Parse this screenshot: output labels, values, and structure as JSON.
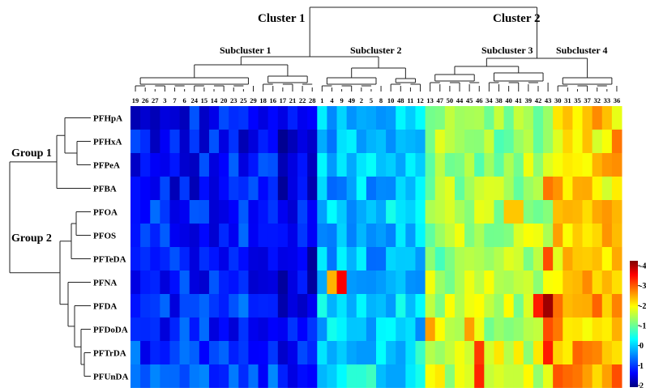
{
  "chart_data": {
    "type": "heatmap",
    "title": "",
    "rows": [
      "PFHpA",
      "PFHxA",
      "PFPeA",
      "PFBA",
      "PFOA",
      "PFOS",
      "PFTeDA",
      "PFNA",
      "PFDA",
      "PFDoDA",
      "PFTrDA",
      "PFUnDA"
    ],
    "columns": [
      "19",
      "26",
      "27",
      "3",
      "7",
      "6",
      "24",
      "15",
      "14",
      "20",
      "23",
      "25",
      "29",
      "18",
      "16",
      "17",
      "21",
      "22",
      "28",
      "1",
      "4",
      "9",
      "49",
      "2",
      "5",
      "8",
      "10",
      "48",
      "11",
      "12",
      "13",
      "47",
      "50",
      "44",
      "45",
      "46",
      "34",
      "38",
      "40",
      "41",
      "39",
      "42",
      "43",
      "30",
      "31",
      "35",
      "37",
      "32",
      "33",
      "36"
    ],
    "row_groups": [
      {
        "label": "Group 1",
        "rows": [
          "PFHpA",
          "PFHxA",
          "PFPeA",
          "PFBA"
        ]
      },
      {
        "label": "Group 2",
        "rows": [
          "PFOA",
          "PFOS",
          "PFTeDA",
          "PFNA",
          "PFDA",
          "PFDoDA",
          "PFTrDA",
          "PFUnDA"
        ]
      }
    ],
    "column_clusters": [
      {
        "label": "Cluster 1",
        "subclusters": [
          "Subcluster 1",
          "Subcluster 2"
        ]
      },
      {
        "label": "Cluster 2",
        "subclusters": [
          "Subcluster 3",
          "Subcluster 4"
        ]
      }
    ],
    "subclusters": [
      {
        "label": "Subcluster 1",
        "columns": [
          "19",
          "26",
          "27",
          "3",
          "7",
          "6",
          "24",
          "15",
          "14",
          "20",
          "23",
          "25",
          "29",
          "18",
          "16",
          "17",
          "21",
          "22",
          "28"
        ]
      },
      {
        "label": "Subcluster 2",
        "columns": [
          "1",
          "4",
          "9",
          "49",
          "2",
          "5",
          "8",
          "10",
          "48",
          "11",
          "12"
        ]
      },
      {
        "label": "Subcluster 3",
        "columns": [
          "13",
          "47",
          "50",
          "44",
          "45",
          "46",
          "34",
          "38",
          "40",
          "41",
          "39",
          "42",
          "43"
        ]
      },
      {
        "label": "Subcluster 4",
        "columns": [
          "30",
          "31",
          "35",
          "37",
          "32",
          "33",
          "36"
        ]
      }
    ],
    "colorbar": {
      "ticks": [
        "-4",
        "-3",
        "-2",
        "-1",
        "0",
        "1",
        "2"
      ],
      "colormap": "jet",
      "colors": [
        "#7f0000",
        "#ff0000",
        "#ffff00",
        "#00ffff",
        "#0000ff",
        "#00007f"
      ]
    }
  }
}
